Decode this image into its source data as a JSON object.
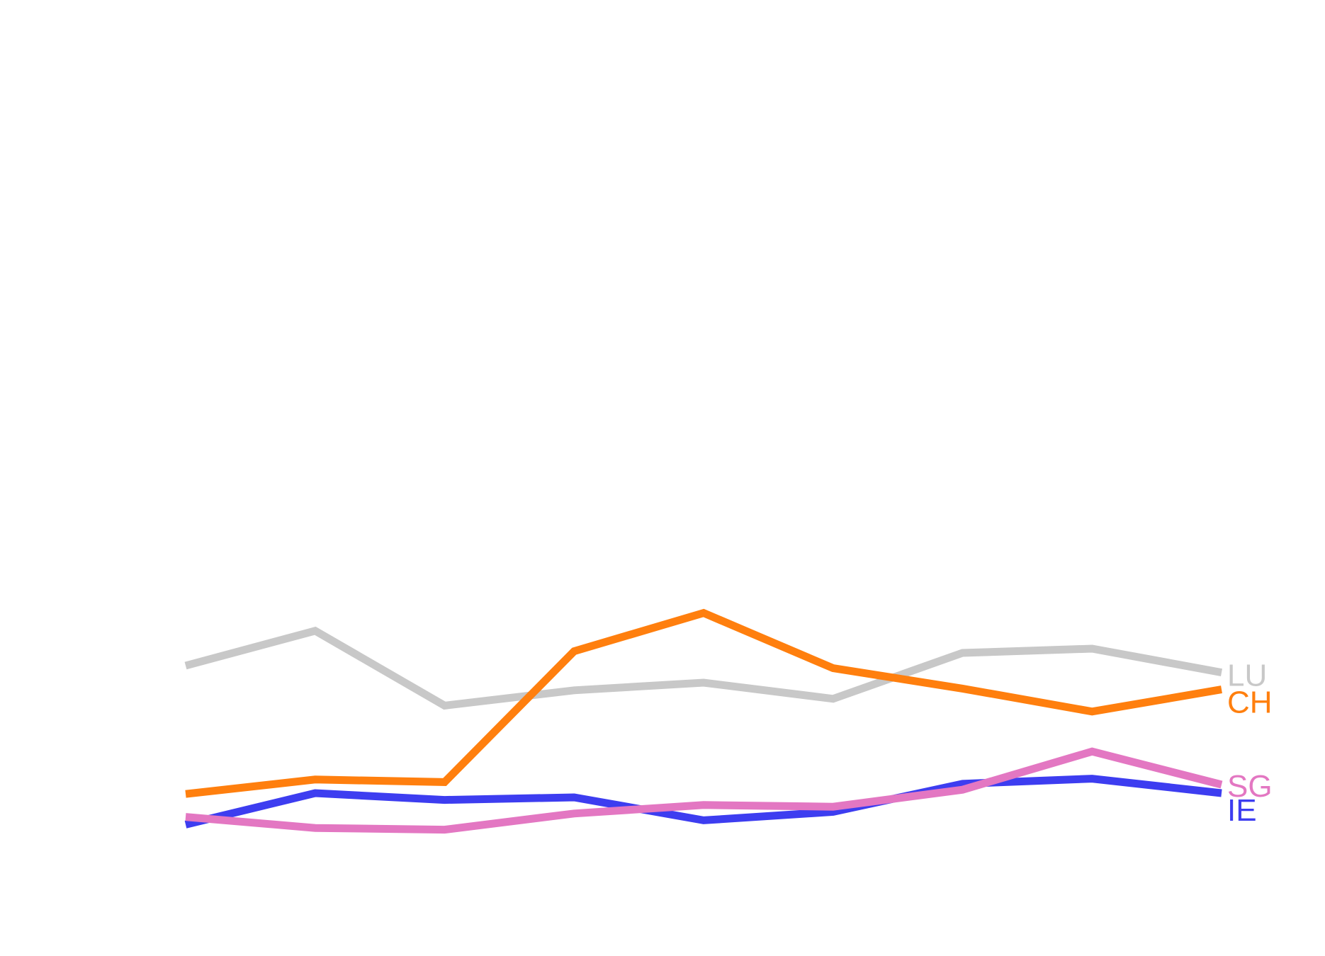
{
  "chart_data": {
    "type": "line",
    "title": "",
    "xlabel": "",
    "ylabel": "",
    "x": [
      1,
      2,
      3,
      4,
      5,
      6,
      7,
      8,
      9
    ],
    "ylim": [
      0,
      100
    ],
    "grid": false,
    "legend": "direct-labels-right",
    "series": [
      {
        "name": "LU",
        "color": "#c8c8c8",
        "values": [
          25.0,
          29.1,
          20.3,
          22.1,
          23.0,
          21.1,
          26.5,
          27.0,
          24.2
        ]
      },
      {
        "name": "CH",
        "color": "#ff7f0e",
        "values": [
          9.9,
          11.6,
          11.3,
          26.7,
          31.2,
          24.7,
          22.3,
          19.6,
          22.2
        ]
      },
      {
        "name": "SG",
        "color": "#e377c2",
        "values": [
          7.2,
          5.9,
          5.7,
          7.6,
          8.6,
          8.4,
          10.4,
          14.9,
          11.0
        ]
      },
      {
        "name": "IE",
        "color": "#3d3df0",
        "values": [
          6.3,
          10.0,
          9.2,
          9.5,
          6.8,
          7.8,
          11.1,
          11.7,
          10.0
        ]
      }
    ]
  }
}
